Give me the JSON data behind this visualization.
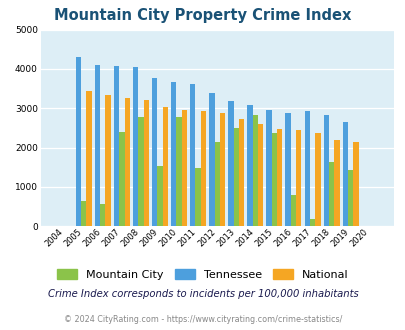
{
  "title": "Mountain City Property Crime Index",
  "years": [
    "2004",
    "2005",
    "2006",
    "2007",
    "2008",
    "2009",
    "2010",
    "2011",
    "2012",
    "2013",
    "2014",
    "2015",
    "2016",
    "2017",
    "2018",
    "2019",
    "2020"
  ],
  "mountain_city": [
    0,
    650,
    550,
    2400,
    2775,
    1530,
    2775,
    1470,
    2130,
    2500,
    2820,
    2380,
    800,
    175,
    1640,
    1430,
    0
  ],
  "tennessee": [
    0,
    4300,
    4100,
    4080,
    4050,
    3775,
    3680,
    3620,
    3380,
    3175,
    3080,
    2950,
    2880,
    2940,
    2840,
    2650,
    0
  ],
  "national": [
    0,
    3450,
    3340,
    3260,
    3220,
    3040,
    2960,
    2930,
    2890,
    2730,
    2600,
    2480,
    2450,
    2370,
    2200,
    2140,
    0
  ],
  "mountain_city_color": "#8bc34a",
  "tennessee_color": "#4d9fdd",
  "national_color": "#f5a623",
  "bg_color": "#ddeef6",
  "ylim": [
    0,
    5000
  ],
  "yticks": [
    0,
    1000,
    2000,
    3000,
    4000,
    5000
  ],
  "subtitle": "Crime Index corresponds to incidents per 100,000 inhabitants",
  "footer": "© 2024 CityRating.com - https://www.cityrating.com/crime-statistics/",
  "legend_labels": [
    "Mountain City",
    "Tennessee",
    "National"
  ]
}
